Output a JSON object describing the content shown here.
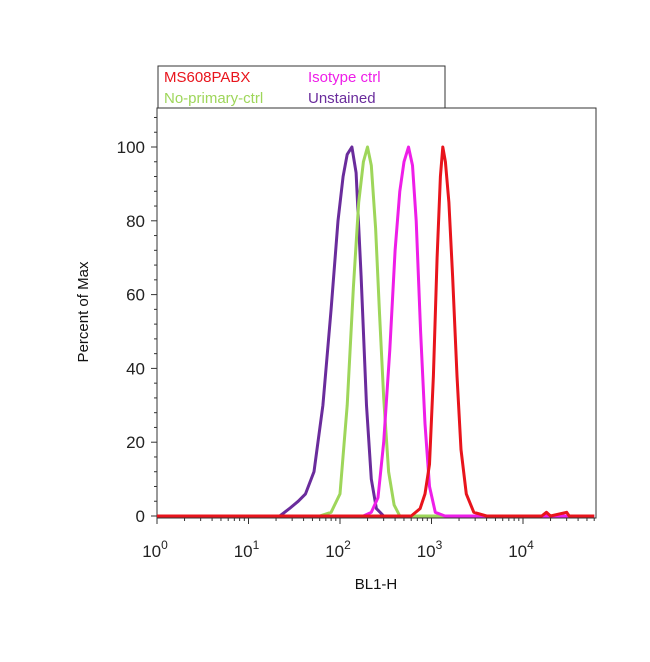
{
  "chart_data": {
    "type": "line",
    "title": "",
    "xlabel": "BL1-H",
    "ylabel": "Percent of Max",
    "xscale": "log",
    "xlim": [
      1,
      60000
    ],
    "ylim": [
      0,
      110
    ],
    "x_ticks": [
      {
        "base": "10",
        "exp": "0",
        "value": 1
      },
      {
        "base": "10",
        "exp": "1",
        "value": 10
      },
      {
        "base": "10",
        "exp": "2",
        "value": 100
      },
      {
        "base": "10",
        "exp": "3",
        "value": 1000
      },
      {
        "base": "10",
        "exp": "4",
        "value": 10000
      }
    ],
    "y_ticks": [
      {
        "label": "0",
        "value": 0
      },
      {
        "label": "20",
        "value": 20
      },
      {
        "label": "40",
        "value": 40
      },
      {
        "label": "60",
        "value": 60
      },
      {
        "label": "80",
        "value": 80
      },
      {
        "label": "100",
        "value": 100
      }
    ],
    "grid": false,
    "legend_position": "top-left, outside plot",
    "series": [
      {
        "name": "MS608PABX",
        "color": "#e8141c",
        "points": [
          [
            1,
            0
          ],
          [
            100,
            0
          ],
          [
            600,
            0
          ],
          [
            750,
            2
          ],
          [
            850,
            6
          ],
          [
            950,
            14
          ],
          [
            1050,
            38
          ],
          [
            1150,
            70
          ],
          [
            1250,
            92
          ],
          [
            1330,
            100
          ],
          [
            1420,
            96
          ],
          [
            1550,
            85
          ],
          [
            1700,
            65
          ],
          [
            1900,
            38
          ],
          [
            2100,
            18
          ],
          [
            2400,
            6
          ],
          [
            2900,
            1
          ],
          [
            4000,
            0
          ],
          [
            8000,
            0
          ],
          [
            16000,
            0
          ],
          [
            18000,
            1
          ],
          [
            20000,
            0
          ],
          [
            30000,
            1
          ],
          [
            32000,
            0
          ],
          [
            60000,
            0
          ]
        ]
      },
      {
        "name": "Isotype ctrl",
        "color": "#ee1ee8",
        "points": [
          [
            1,
            0
          ],
          [
            100,
            0
          ],
          [
            180,
            0
          ],
          [
            220,
            1
          ],
          [
            260,
            5
          ],
          [
            300,
            20
          ],
          [
            350,
            45
          ],
          [
            400,
            72
          ],
          [
            450,
            88
          ],
          [
            500,
            96
          ],
          [
            560,
            100
          ],
          [
            620,
            95
          ],
          [
            680,
            80
          ],
          [
            760,
            50
          ],
          [
            850,
            25
          ],
          [
            950,
            8
          ],
          [
            1100,
            1
          ],
          [
            1400,
            0
          ],
          [
            60000,
            0
          ]
        ]
      },
      {
        "name": "No-primary-ctrl",
        "color": "#9ed65a",
        "points": [
          [
            1,
            0
          ],
          [
            60,
            0
          ],
          [
            80,
            1
          ],
          [
            100,
            6
          ],
          [
            120,
            30
          ],
          [
            140,
            62
          ],
          [
            160,
            85
          ],
          [
            180,
            96
          ],
          [
            200,
            100
          ],
          [
            220,
            95
          ],
          [
            245,
            78
          ],
          [
            270,
            55
          ],
          [
            300,
            32
          ],
          [
            340,
            12
          ],
          [
            390,
            3
          ],
          [
            450,
            0
          ],
          [
            60000,
            0
          ]
        ]
      },
      {
        "name": "Unstained",
        "color": "#6a2c9c",
        "points": [
          [
            1,
            0
          ],
          [
            22,
            0
          ],
          [
            28,
            2
          ],
          [
            35,
            4
          ],
          [
            42,
            6
          ],
          [
            52,
            12
          ],
          [
            65,
            30
          ],
          [
            80,
            56
          ],
          [
            95,
            80
          ],
          [
            108,
            92
          ],
          [
            120,
            98
          ],
          [
            135,
            100
          ],
          [
            150,
            93
          ],
          [
            170,
            65
          ],
          [
            195,
            30
          ],
          [
            220,
            10
          ],
          [
            250,
            2
          ],
          [
            300,
            0
          ],
          [
            60000,
            0
          ]
        ]
      }
    ]
  }
}
